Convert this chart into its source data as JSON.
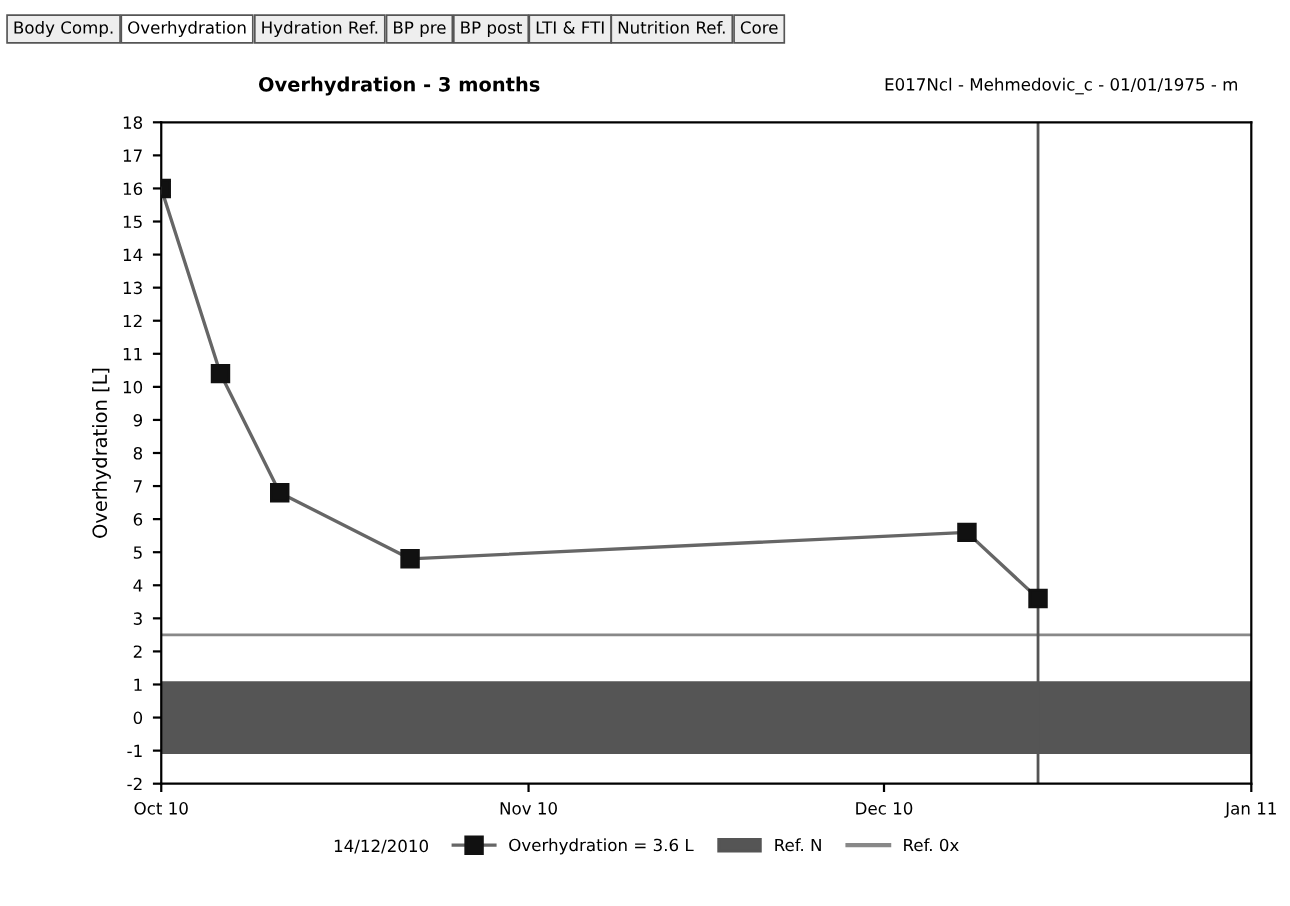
{
  "chart_data": {
    "type": "line",
    "title": "Overhydration - 3 months",
    "subtitle": "E017Ncl - Mehmedovic_c - 01/01/1975 - m",
    "ylabel": "Overhydration [L]",
    "legend_title": "14/12/2010",
    "annotations": [
      "Body Comp.",
      "Overhydration",
      "Hydration Ref.",
      "BP pre",
      "BP post",
      "LTI & FTI",
      "Nutrition Ref.",
      "Core"
    ],
    "x": [
      "2010-10-01",
      "2010-10-06",
      "2010-10-11",
      "2010-10-22",
      "2010-12-08",
      "2010-12-14"
    ],
    "series": [
      {
        "name": "Overhydration = 3.6 L",
        "color": "#666666",
        "values": [
          16,
          10.4,
          6.8,
          4.8,
          5.6,
          3.6
        ]
      }
    ],
    "marker": "square",
    "line_style": "solid",
    "xlim": [
      "2010-10-01",
      "2011-01-01"
    ],
    "xticks": [
      {
        "value": "2010-10-01",
        "label": "Oct 10"
      },
      {
        "value": "2010-11-01",
        "label": "Nov 10"
      },
      {
        "value": "2010-12-01",
        "label": "Dec 10"
      },
      {
        "value": "2011-01-01",
        "label": "Jan 11"
      }
    ],
    "ylim": [
      -2,
      18
    ],
    "yticks": [
      -2,
      -1,
      0,
      1,
      2,
      3,
      4,
      5,
      6,
      7,
      8,
      9,
      10,
      11,
      12,
      13,
      14,
      15,
      16,
      17,
      18
    ],
    "bands": [
      {
        "axis": "y",
        "from": -1.1,
        "to": 1.1,
        "label": "Ref. N",
        "color": "#555555"
      }
    ],
    "ref_lines": [
      {
        "axis": "y",
        "value": 2.5,
        "label": "Ref. 0x",
        "color": "#888888",
        "line_style": "solid"
      },
      {
        "axis": "x",
        "value": "2010-12-14",
        "color": "#555555",
        "line_style": "solid"
      }
    ],
    "grid": false,
    "legend": "bottom"
  }
}
